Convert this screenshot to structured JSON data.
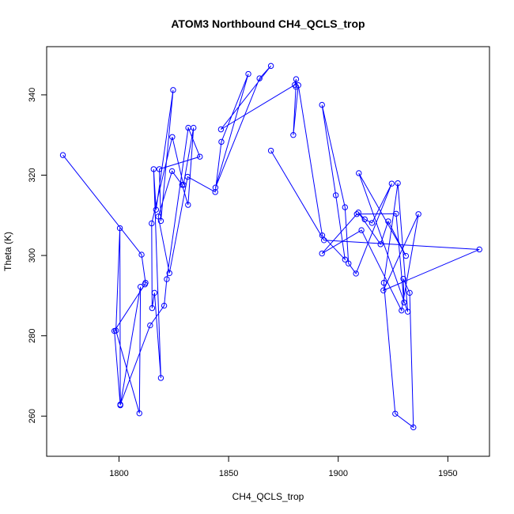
{
  "chart_data": {
    "type": "line",
    "title": "ATOM3 Northbound CH4_QCLS_trop",
    "xlabel": "CH4_QCLS_trop",
    "ylabel": "Theta (K)",
    "xlim": [
      1767,
      1969
    ],
    "ylim": [
      250,
      352
    ],
    "xticks": [
      1800,
      1850,
      1900,
      1950
    ],
    "yticks": [
      260,
      280,
      300,
      320,
      340
    ],
    "grid": false,
    "series_color": "#0000ff",
    "series": [
      {
        "marker": "open-circle",
        "points": [
          [
            1774.4,
            325.0
          ],
          [
            1810.3,
            300.2
          ],
          [
            1812.1,
            293.2
          ],
          [
            1811.8,
            292.8
          ],
          [
            1797.9,
            281.2
          ],
          [
            1800.6,
            262.7
          ],
          [
            1809.8,
            292.2
          ],
          [
            1809.3,
            260.7
          ],
          [
            1798.6,
            281.3
          ],
          [
            1800.4,
            306.8
          ],
          [
            1800.6,
            262.9
          ],
          [
            1814.2,
            282.6
          ],
          [
            1820.6,
            287.5
          ],
          [
            1821.8,
            294.1
          ],
          [
            1831.6,
            331.8
          ],
          [
            1836.9,
            324.6
          ],
          [
            1818.4,
            321.5
          ],
          [
            1819.1,
            308.6
          ],
          [
            1824.7,
            341.2
          ],
          [
            1816.9,
            311.4
          ],
          [
            1815.8,
            321.5
          ],
          [
            1819.1,
            269.5
          ],
          [
            1816.2,
            290.7
          ],
          [
            1815.1,
            286.9
          ],
          [
            1814.9,
            308.0
          ],
          [
            1824.3,
            329.5
          ],
          [
            1829.4,
            317.6
          ],
          [
            1834.0,
            331.8
          ],
          [
            1831.5,
            312.6
          ],
          [
            1828.8,
            317.6
          ],
          [
            1824.2,
            321.0
          ],
          [
            1817.9,
            309.7
          ],
          [
            1823.0,
            295.6
          ],
          [
            1831.3,
            319.6
          ],
          [
            1843.9,
            315.8
          ],
          [
            1846.7,
            328.3
          ],
          [
            1859.0,
            345.2
          ],
          [
            1844.0,
            316.9
          ],
          [
            1864.1,
            344.1
          ],
          [
            1869.3,
            347.2
          ],
          [
            1846.5,
            331.4
          ],
          [
            1880.2,
            342.5
          ],
          [
            1880.8,
            343.9
          ],
          [
            1880.7,
            342.0
          ],
          [
            1879.5,
            330.0
          ],
          [
            1881.8,
            342.4
          ],
          [
            1892.7,
            305.0
          ],
          [
            1903.1,
            299.0
          ],
          [
            1898.9,
            315.0
          ],
          [
            1892.6,
            337.5
          ],
          [
            1903.1,
            312.0
          ],
          [
            1904.7,
            298.0
          ],
          [
            1908.1,
            295.5
          ],
          [
            1924.4,
            317.9
          ],
          [
            1915.4,
            308.1
          ],
          [
            1912.1,
            309.0
          ],
          [
            1909.2,
            310.7
          ],
          [
            1919.3,
            302.8
          ],
          [
            1922.8,
            308.5
          ],
          [
            1930.9,
            299.9
          ],
          [
            1909.4,
            320.5
          ],
          [
            1931.7,
            286.0
          ],
          [
            1927.2,
            318.0
          ],
          [
            1920.8,
            293.2
          ],
          [
            1926.0,
            260.6
          ],
          [
            1934.3,
            257.2
          ],
          [
            1932.6,
            290.7
          ],
          [
            1929.7,
            294.2
          ],
          [
            1930.0,
            288.3
          ],
          [
            1926.4,
            310.4
          ],
          [
            1908.5,
            310.3
          ],
          [
            1892.6,
            300.5
          ],
          [
            1910.6,
            306.3
          ],
          [
            1928.9,
            286.3
          ],
          [
            1936.6,
            310.3
          ],
          [
            1920.6,
            291.3
          ],
          [
            1964.4,
            301.5
          ],
          [
            1893.5,
            303.8
          ],
          [
            1869.3,
            326.1
          ]
        ]
      }
    ]
  }
}
